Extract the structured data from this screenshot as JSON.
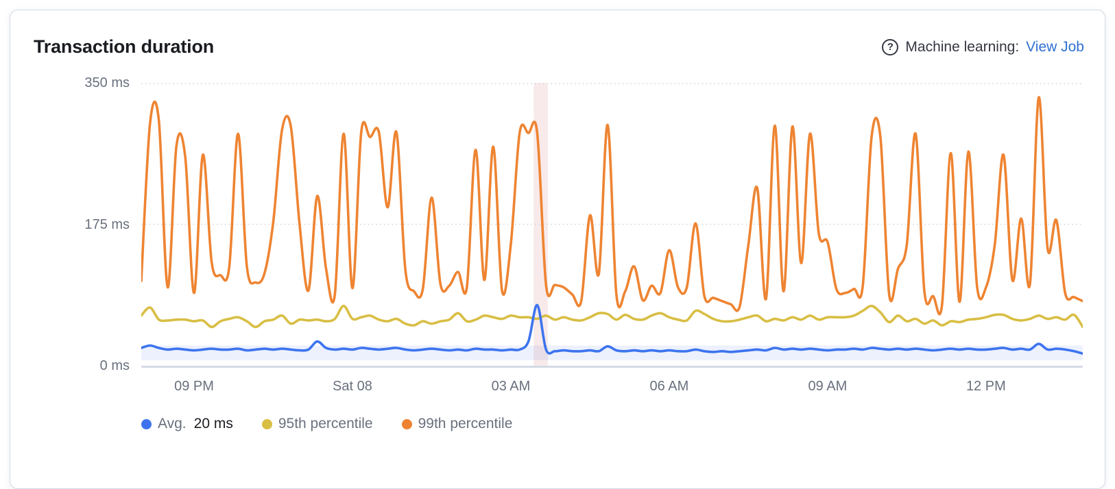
{
  "panel": {
    "title": "Transaction duration",
    "ml_help_icon": "?",
    "ml_label": "Machine learning:",
    "ml_link": "View Job"
  },
  "colors": {
    "avg_line": "#3d74ee",
    "p95_line": "#d8be44",
    "p99_line": "#ee8432",
    "link": "#2e6fd1",
    "axis_text": "#69707d",
    "grid_dotted": "#d0d4dc",
    "axis_line": "#d3dae6",
    "anomaly_band": "rgba(196,86,80,0.12)",
    "ml_bounds_fill": "rgba(100,140,240,0.12)"
  },
  "chart_data": {
    "type": "line",
    "title": "Transaction duration",
    "unit": "ms",
    "ylim": [
      0,
      350
    ],
    "grid": "horizontal-dotted",
    "legend_position": "bottom",
    "y_ticks": [
      {
        "value": 350,
        "label": "350 ms"
      },
      {
        "value": 175,
        "label": "175 ms"
      },
      {
        "value": 0,
        "label": "0 ms"
      }
    ],
    "x_tick_labels": [
      {
        "index": 6,
        "label": "09 PM"
      },
      {
        "index": 24,
        "label": "Sat 08"
      },
      {
        "index": 42,
        "label": "03 AM"
      },
      {
        "index": 60,
        "label": "06 AM"
      },
      {
        "index": 78,
        "label": "09 AM"
      },
      {
        "index": 96,
        "label": "12 PM"
      }
    ],
    "anomaly_band": {
      "start_index": 44.6,
      "end_index": 46.2
    },
    "ml_expected_bounds": {
      "upper": 25,
      "lower": 7
    },
    "series": [
      {
        "id": "avg",
        "name": "Avg.",
        "legend_value": "20 ms",
        "color": "#3d74ee",
        "values": [
          22,
          25,
          22,
          20,
          21,
          20,
          19,
          20,
          21,
          20,
          20,
          21,
          19,
          20,
          21,
          20,
          21,
          20,
          19,
          20,
          30,
          22,
          20,
          21,
          20,
          22,
          21,
          20,
          21,
          22,
          20,
          19,
          20,
          21,
          20,
          19,
          20,
          19,
          21,
          20,
          20,
          19,
          20,
          20,
          30,
          75,
          20,
          18,
          19,
          18,
          18,
          19,
          18,
          24,
          19,
          18,
          19,
          18,
          19,
          18,
          19,
          18,
          18,
          20,
          18,
          17,
          18,
          17,
          18,
          19,
          20,
          19,
          22,
          20,
          21,
          20,
          21,
          20,
          19,
          20,
          20,
          21,
          20,
          22,
          21,
          20,
          21,
          20,
          21,
          20,
          19,
          20,
          21,
          20,
          21,
          20,
          20,
          21,
          22,
          20,
          21,
          20,
          27,
          20,
          21,
          20,
          18,
          15
        ]
      },
      {
        "id": "p95",
        "name": "95th percentile",
        "legend_value": "",
        "color": "#d8be44",
        "values": [
          62,
          72,
          57,
          56,
          57,
          57,
          55,
          56,
          48,
          55,
          58,
          60,
          55,
          48,
          55,
          57,
          62,
          52,
          57,
          56,
          57,
          55,
          58,
          74,
          58,
          60,
          62,
          57,
          55,
          58,
          52,
          50,
          55,
          52,
          55,
          57,
          65,
          55,
          57,
          62,
          60,
          58,
          62,
          60,
          60,
          58,
          62,
          57,
          60,
          57,
          56,
          60,
          65,
          64,
          57,
          63,
          58,
          57,
          62,
          65,
          60,
          57,
          56,
          68,
          64,
          58,
          55,
          55,
          57,
          60,
          62,
          55,
          58,
          56,
          60,
          57,
          62,
          57,
          60,
          60,
          60,
          62,
          68,
          74,
          66,
          54,
          62,
          55,
          58,
          52,
          56,
          50,
          55,
          54,
          57,
          58,
          60,
          63,
          63,
          58,
          56,
          58,
          62,
          58,
          60,
          57,
          63,
          48
        ]
      },
      {
        "id": "p99",
        "name": "99th percentile",
        "legend_value": "",
        "color": "#ee8432",
        "values": [
          105,
          300,
          303,
          97,
          272,
          258,
          90,
          261,
          128,
          112,
          122,
          287,
          123,
          103,
          114,
          178,
          292,
          296,
          174,
          93,
          210,
          120,
          88,
          287,
          96,
          289,
          283,
          289,
          196,
          289,
          120,
          92,
          95,
          208,
          101,
          99,
          116,
          97,
          267,
          106,
          271,
          93,
          150,
          288,
          288,
          288,
          100,
          100,
          97,
          88,
          80,
          186,
          114,
          298,
          88,
          92,
          123,
          81,
          99,
          90,
          143,
          97,
          97,
          176,
          86,
          84,
          80,
          76,
          73,
          150,
          220,
          83,
          297,
          92,
          296,
          127,
          287,
          164,
          153,
          95,
          90,
          95,
          99,
          283,
          283,
          88,
          120,
          150,
          287,
          92,
          86,
          75,
          263,
          79,
          265,
          97,
          97,
          150,
          261,
          106,
          182,
          101,
          332,
          145,
          180,
          90,
          85,
          80
        ]
      }
    ]
  }
}
